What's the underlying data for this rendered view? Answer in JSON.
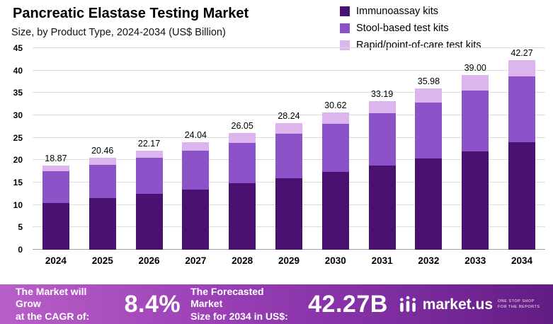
{
  "header": {
    "title": "Pancreatic Elastase Testing Market",
    "subtitle": "Size, by Product Type, 2024-2034 (US$ Billion)"
  },
  "legend": [
    {
      "label": "Immunoassay kits",
      "color": "#4a1170"
    },
    {
      "label": "Stool-based test kits",
      "color": "#8c52c8"
    },
    {
      "label": "Rapid/point-of-care test kits",
      "color": "#dcb5ee"
    }
  ],
  "chart_data": {
    "type": "bar",
    "stacked": true,
    "title": "Pancreatic Elastase Testing Market Size, by Product Type, 2024-2034 (US$ Billion)",
    "categories": [
      "2024",
      "2025",
      "2026",
      "2027",
      "2028",
      "2029",
      "2030",
      "2031",
      "2032",
      "2033",
      "2034"
    ],
    "series": [
      {
        "name": "Immunoassay kits",
        "color": "#4a1170",
        "values": [
          10.5,
          11.5,
          12.5,
          13.5,
          14.8,
          16.0,
          17.3,
          18.8,
          20.3,
          22.0,
          24.0
        ]
      },
      {
        "name": "Stool-based test kits",
        "color": "#8c52c8",
        "values": [
          7.0,
          7.5,
          8.0,
          8.6,
          9.1,
          9.9,
          10.8,
          11.6,
          12.6,
          13.6,
          14.7
        ]
      },
      {
        "name": "Rapid/point-of-care test kits",
        "color": "#dcb5ee",
        "values": [
          1.37,
          1.46,
          1.67,
          1.94,
          2.15,
          2.34,
          2.52,
          2.79,
          3.08,
          3.4,
          3.57
        ]
      }
    ],
    "totals": [
      18.87,
      20.46,
      22.17,
      24.04,
      26.05,
      28.24,
      30.62,
      33.19,
      35.98,
      39.0,
      42.27
    ],
    "ylim": [
      0,
      45
    ],
    "yticks": [
      0,
      5,
      10,
      15,
      20,
      25,
      30,
      35,
      40,
      45
    ],
    "grid": true,
    "legend_position": "top-right"
  },
  "banner": {
    "cagr_label_line1": "The Market will Grow",
    "cagr_label_line2": "at the CAGR of:",
    "cagr_value": "8.4%",
    "forecast_label_line1": "The Forecasted Market",
    "forecast_label_line2": "Size for 2034 in US$:",
    "forecast_value": "42.27B",
    "logo_text": "market.us",
    "logo_tagline": "One Stop Shop For The Reports"
  }
}
